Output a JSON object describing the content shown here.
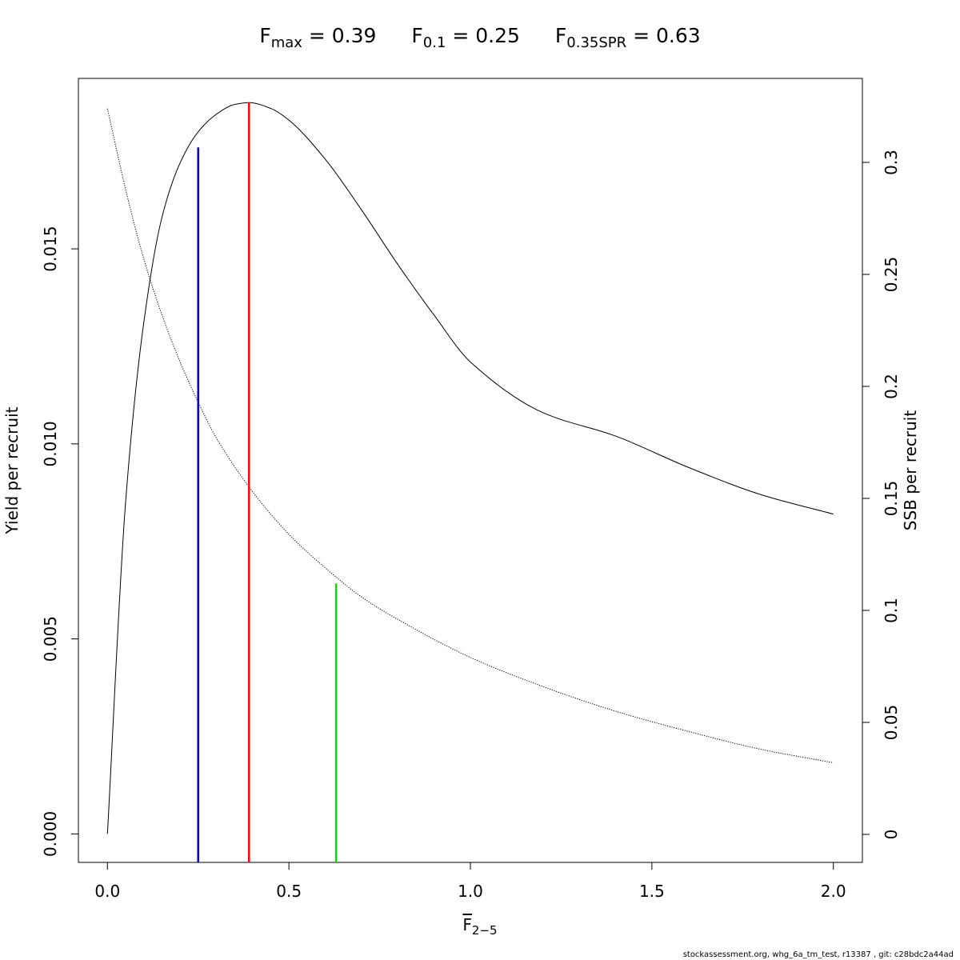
{
  "title": {
    "fmax": {
      "sym": "F",
      "sub": "max",
      "rest": " = 0.39"
    },
    "f01": {
      "sym": "F",
      "sub": "0.1",
      "rest": " = 0.25"
    },
    "fspr": {
      "sym": "F",
      "sub": "0.35SPR",
      "rest": " = 0.63"
    }
  },
  "footer": "stockassessment.org, whg_6a_tm_test, r13387 , git: c28bdc2a44ad",
  "chart_data": {
    "type": "line",
    "xlabel": {
      "sym": "F",
      "sub": "2−5"
    },
    "ylabel": "Yield per recruit",
    "y2label": "SSB per recruit",
    "xlim": [
      -0.08,
      2.08
    ],
    "ylim": [
      -0.00073,
      0.01937
    ],
    "y2lim": [
      -0.0125,
      0.3375
    ],
    "xticks": [
      0.0,
      0.5,
      1.0,
      1.5,
      2.0
    ],
    "xtick_labels": [
      "0.0",
      "0.5",
      "1.0",
      "1.5",
      "2.0"
    ],
    "yticks": [
      0.0,
      0.005,
      0.01,
      0.015
    ],
    "ytick_labels": [
      "0.000",
      "0.005",
      "0.010",
      "0.015"
    ],
    "y2ticks": [
      0,
      0.05,
      0.1,
      0.15,
      0.2,
      0.25,
      0.3
    ],
    "y2tick_labels": [
      "0",
      "0.05",
      "0.1",
      "0.15",
      "0.2",
      "0.25",
      "0.3"
    ],
    "series": [
      {
        "axis": "left",
        "style": "solid",
        "color": "#000000",
        "x": [
          0.0,
          0.05,
          0.1,
          0.15,
          0.2,
          0.25,
          0.3,
          0.35,
          0.39,
          0.45,
          0.5,
          0.6,
          0.7,
          0.8,
          0.9,
          1.0,
          1.2,
          1.4,
          1.6,
          1.8,
          2.0
        ],
        "y": [
          0.0,
          0.0085,
          0.0131,
          0.0158,
          0.0172,
          0.018,
          0.01845,
          0.0187,
          0.01875,
          0.0186,
          0.0183,
          0.0173,
          0.016,
          0.0146,
          0.0133,
          0.0121,
          0.0108,
          0.0102,
          0.0094,
          0.0087,
          0.0082
        ]
      },
      {
        "axis": "right",
        "style": "dotted",
        "color": "#000000",
        "x": [
          0.0,
          0.05,
          0.1,
          0.15,
          0.2,
          0.25,
          0.3,
          0.4,
          0.5,
          0.6,
          0.7,
          0.8,
          1.0,
          1.2,
          1.4,
          1.6,
          1.8,
          2.0
        ],
        "y": [
          0.324,
          0.288,
          0.257,
          0.232,
          0.211,
          0.193,
          0.177,
          0.153,
          0.134,
          0.119,
          0.106,
          0.096,
          0.079,
          0.066,
          0.055,
          0.046,
          0.038,
          0.032
        ]
      }
    ],
    "reference_lines": [
      {
        "name": "F0.1",
        "x": 0.25,
        "y_top": 0.0176,
        "axis": "left",
        "color": "#0000cd"
      },
      {
        "name": "Fmax",
        "x": 0.39,
        "y_top": 0.01875,
        "axis": "left",
        "color": "#ff0000"
      },
      {
        "name": "F0.35SPR",
        "x": 0.63,
        "y_top": 0.112,
        "axis": "right",
        "color": "#00e000"
      }
    ]
  }
}
